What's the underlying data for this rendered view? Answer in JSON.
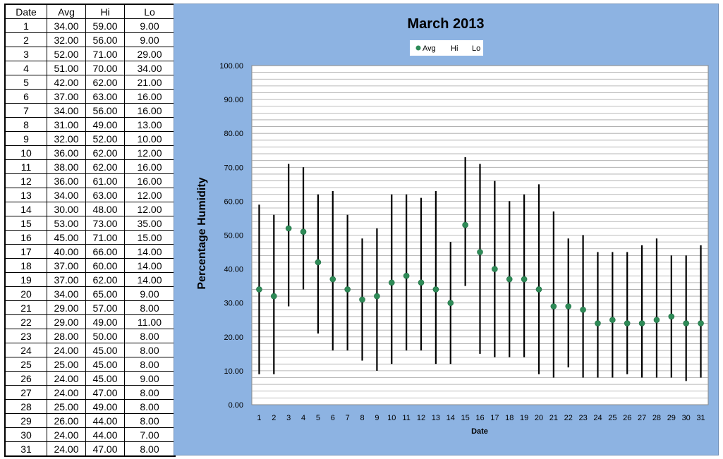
{
  "table": {
    "headers": [
      "Date",
      "Avg",
      "Hi",
      "Lo"
    ],
    "rows": [
      [
        "1",
        "34.00",
        "59.00",
        "9.00"
      ],
      [
        "2",
        "32.00",
        "56.00",
        "9.00"
      ],
      [
        "3",
        "52.00",
        "71.00",
        "29.00"
      ],
      [
        "4",
        "51.00",
        "70.00",
        "34.00"
      ],
      [
        "5",
        "42.00",
        "62.00",
        "21.00"
      ],
      [
        "6",
        "37.00",
        "63.00",
        "16.00"
      ],
      [
        "7",
        "34.00",
        "56.00",
        "16.00"
      ],
      [
        "8",
        "31.00",
        "49.00",
        "13.00"
      ],
      [
        "9",
        "32.00",
        "52.00",
        "10.00"
      ],
      [
        "10",
        "36.00",
        "62.00",
        "12.00"
      ],
      [
        "11",
        "38.00",
        "62.00",
        "16.00"
      ],
      [
        "12",
        "36.00",
        "61.00",
        "16.00"
      ],
      [
        "13",
        "34.00",
        "63.00",
        "12.00"
      ],
      [
        "14",
        "30.00",
        "48.00",
        "12.00"
      ],
      [
        "15",
        "53.00",
        "73.00",
        "35.00"
      ],
      [
        "16",
        "45.00",
        "71.00",
        "15.00"
      ],
      [
        "17",
        "40.00",
        "66.00",
        "14.00"
      ],
      [
        "18",
        "37.00",
        "60.00",
        "14.00"
      ],
      [
        "19",
        "37.00",
        "62.00",
        "14.00"
      ],
      [
        "20",
        "34.00",
        "65.00",
        "9.00"
      ],
      [
        "21",
        "29.00",
        "57.00",
        "8.00"
      ],
      [
        "22",
        "29.00",
        "49.00",
        "11.00"
      ],
      [
        "23",
        "28.00",
        "50.00",
        "8.00"
      ],
      [
        "24",
        "24.00",
        "45.00",
        "8.00"
      ],
      [
        "25",
        "25.00",
        "45.00",
        "8.00"
      ],
      [
        "26",
        "24.00",
        "45.00",
        "9.00"
      ],
      [
        "27",
        "24.00",
        "47.00",
        "8.00"
      ],
      [
        "28",
        "25.00",
        "49.00",
        "8.00"
      ],
      [
        "29",
        "26.00",
        "44.00",
        "8.00"
      ],
      [
        "30",
        "24.00",
        "44.00",
        "7.00"
      ],
      [
        "31",
        "24.00",
        "47.00",
        "8.00"
      ]
    ]
  },
  "chart_data": {
    "type": "scatter",
    "title": "March 2013",
    "xlabel": "Date",
    "ylabel": "Percentage Humidity",
    "categories": [
      "1",
      "2",
      "3",
      "4",
      "5",
      "6",
      "7",
      "8",
      "9",
      "10",
      "11",
      "12",
      "13",
      "14",
      "15",
      "16",
      "17",
      "18",
      "19",
      "20",
      "21",
      "22",
      "23",
      "24",
      "25",
      "26",
      "27",
      "28",
      "29",
      "30",
      "31"
    ],
    "series": [
      {
        "name": "Avg",
        "values": [
          34,
          32,
          52,
          51,
          42,
          37,
          34,
          31,
          32,
          36,
          38,
          36,
          34,
          30,
          53,
          45,
          40,
          37,
          37,
          34,
          29,
          29,
          28,
          24,
          25,
          24,
          24,
          25,
          26,
          24,
          24
        ]
      },
      {
        "name": "Hi",
        "values": [
          59,
          56,
          71,
          70,
          62,
          63,
          56,
          49,
          52,
          62,
          62,
          61,
          63,
          48,
          73,
          71,
          66,
          60,
          62,
          65,
          57,
          49,
          50,
          45,
          45,
          45,
          47,
          49,
          44,
          44,
          47
        ]
      },
      {
        "name": "Lo",
        "values": [
          9,
          9,
          29,
          34,
          21,
          16,
          16,
          13,
          10,
          12,
          16,
          16,
          12,
          12,
          35,
          15,
          14,
          14,
          14,
          9,
          8,
          11,
          8,
          8,
          8,
          9,
          8,
          8,
          8,
          7,
          8
        ]
      }
    ],
    "ylim": [
      0,
      100
    ],
    "yticks": [
      "0.00",
      "10.00",
      "20.00",
      "30.00",
      "40.00",
      "50.00",
      "60.00",
      "70.00",
      "80.00",
      "90.00",
      "100.00"
    ],
    "grid": true,
    "legend_position": "top-center",
    "colors": {
      "avg_marker": "#2e8b57",
      "range_bar": "#000000",
      "chart_background": "#8db3e2",
      "plot_background": "#ffffff"
    }
  }
}
